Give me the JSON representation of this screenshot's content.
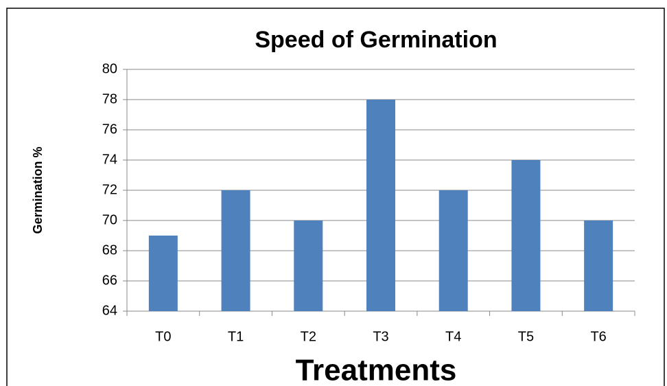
{
  "chart_data": {
    "type": "bar",
    "title": "Speed of Germination",
    "x_label": "Treatments",
    "y_label": "Germination %",
    "categories": [
      "T0",
      "T1",
      "T2",
      "T3",
      "T4",
      "T5",
      "T6"
    ],
    "values": [
      69,
      72,
      70,
      78,
      72,
      74,
      70
    ],
    "color": "#4f81bd",
    "ylim": [
      64,
      80
    ],
    "yticks": [
      64,
      66,
      68,
      70,
      72,
      74,
      76,
      78,
      80
    ],
    "grid": true
  }
}
